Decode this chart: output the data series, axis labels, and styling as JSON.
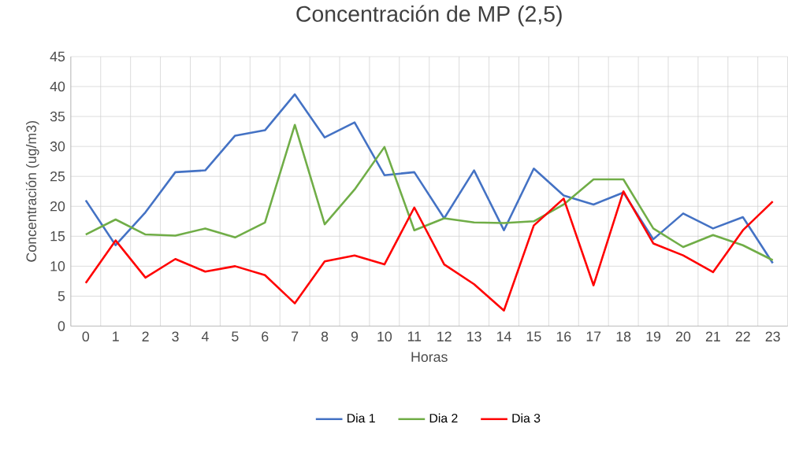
{
  "chart_data": {
    "type": "line",
    "title": "Concentración de MP (2,5)",
    "xlabel": "Horas",
    "ylabel": "Concentración (ug/m3)",
    "categories": [
      "0",
      "1",
      "2",
      "3",
      "4",
      "5",
      "6",
      "7",
      "8",
      "9",
      "10",
      "11",
      "12",
      "13",
      "14",
      "15",
      "16",
      "17",
      "18",
      "19",
      "20",
      "21",
      "22",
      "23"
    ],
    "series": [
      {
        "name": "Dia 1",
        "color": "#4472c4",
        "values": [
          21,
          13.5,
          19,
          25.7,
          26,
          31.8,
          32.7,
          38.7,
          31.5,
          34,
          25.2,
          25.7,
          18,
          26,
          16,
          26.3,
          21.8,
          20.3,
          22.3,
          14.5,
          18.8,
          16.3,
          18.2,
          10.5
        ]
      },
      {
        "name": "Dia 2",
        "color": "#70ad47",
        "values": [
          15.3,
          17.8,
          15.3,
          15.1,
          16.3,
          14.8,
          17.3,
          33.6,
          17,
          22.8,
          29.9,
          16,
          18,
          17.3,
          17.2,
          17.5,
          20.3,
          24.5,
          24.5,
          16.3,
          13.2,
          15.2,
          13.5,
          11
        ]
      },
      {
        "name": "Dia 3",
        "color": "#ff0000",
        "values": [
          7.2,
          14.3,
          8.1,
          11.2,
          9.1,
          10,
          8.5,
          3.8,
          10.8,
          11.8,
          10.3,
          19.8,
          10.3,
          7,
          2.6,
          16.8,
          21.3,
          6.8,
          22.5,
          13.8,
          11.8,
          9,
          16,
          20.8
        ]
      }
    ],
    "ylim": [
      0,
      45
    ],
    "yticks": [
      0,
      5,
      10,
      15,
      20,
      25,
      30,
      35,
      40,
      45
    ],
    "grid": true,
    "legend": "bottom",
    "marker": "none",
    "line_style": "solid"
  }
}
